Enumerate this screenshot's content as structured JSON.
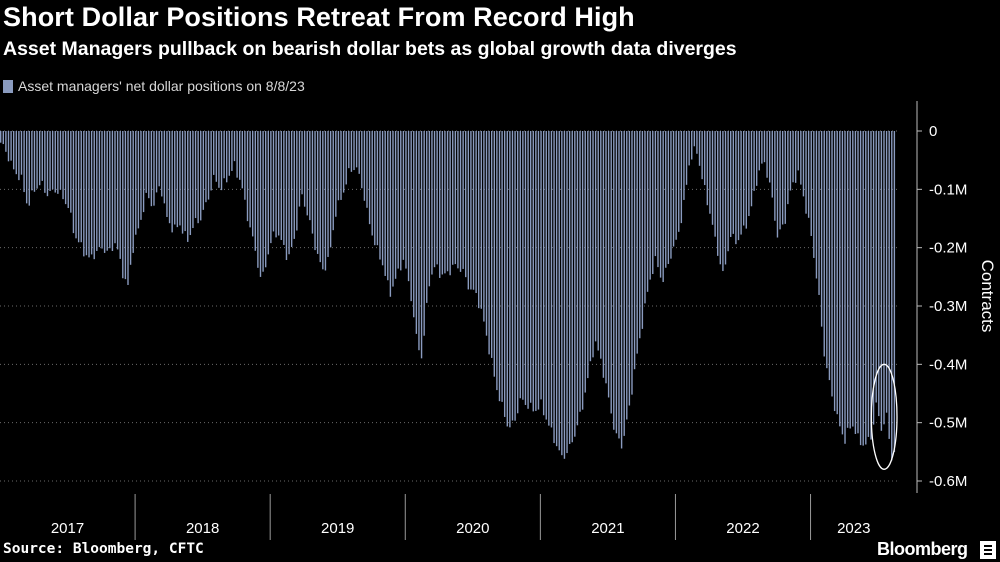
{
  "header": {
    "title": "Short Dollar Positions Retreat From Record High",
    "subtitle": "Asset Managers pullback on bearish dollar bets as global growth data diverges"
  },
  "footer": {
    "source": "Source: Bloomberg, CFTC",
    "brand": "Bloomberg"
  },
  "colors": {
    "background": "#000000",
    "bar": "#8a9bbf",
    "axis_text": "#ffffff",
    "annotation": "#ffffff"
  },
  "chart_data": {
    "type": "bar",
    "title": "Short Dollar Positions Retreat From Record High",
    "subtitle": "Asset Managers pullback on bearish dollar bets as global growth data diverges",
    "legend": [
      "Asset managers' net dollar positions on 8/8/23"
    ],
    "legend_position": "top-left",
    "ylabel": "Contracts",
    "ylim": [
      -0.6,
      0
    ],
    "y_unit": "million contracts",
    "yticks": [
      0,
      -0.1,
      -0.2,
      -0.3,
      -0.4,
      -0.5,
      -0.6
    ],
    "ytick_labels": [
      "0",
      "-0.1M",
      "-0.2M",
      "-0.3M",
      "-0.4M",
      "-0.5M",
      "-0.6M"
    ],
    "y_axis_position": "right",
    "grid": "horizontal dotted",
    "frequency": "weekly",
    "xlim": [
      2017.0,
      2023.64
    ],
    "x_labels": [
      "2017",
      "2018",
      "2019",
      "2020",
      "2021",
      "2022",
      "2023"
    ],
    "year_boundaries": [
      2018,
      2019,
      2020,
      2021,
      2022,
      2023
    ],
    "anchors": [
      [
        2017.0,
        -0.02
      ],
      [
        2017.05,
        -0.04
      ],
      [
        2017.1,
        -0.07
      ],
      [
        2017.15,
        -0.08
      ],
      [
        2017.2,
        -0.13
      ],
      [
        2017.25,
        -0.1
      ],
      [
        2017.3,
        -0.09
      ],
      [
        2017.35,
        -0.11
      ],
      [
        2017.4,
        -0.1
      ],
      [
        2017.45,
        -0.11
      ],
      [
        2017.5,
        -0.13
      ],
      [
        2017.55,
        -0.18
      ],
      [
        2017.6,
        -0.2
      ],
      [
        2017.65,
        -0.22
      ],
      [
        2017.7,
        -0.21
      ],
      [
        2017.75,
        -0.2
      ],
      [
        2017.8,
        -0.21
      ],
      [
        2017.85,
        -0.19
      ],
      [
        2017.9,
        -0.24
      ],
      [
        2017.94,
        -0.27
      ],
      [
        2017.98,
        -0.2
      ],
      [
        2018.03,
        -0.16
      ],
      [
        2018.08,
        -0.11
      ],
      [
        2018.13,
        -0.13
      ],
      [
        2018.18,
        -0.09
      ],
      [
        2018.23,
        -0.15
      ],
      [
        2018.28,
        -0.17
      ],
      [
        2018.33,
        -0.16
      ],
      [
        2018.38,
        -0.19
      ],
      [
        2018.43,
        -0.16
      ],
      [
        2018.48,
        -0.15
      ],
      [
        2018.53,
        -0.12
      ],
      [
        2018.58,
        -0.08
      ],
      [
        2018.63,
        -0.1
      ],
      [
        2018.68,
        -0.08
      ],
      [
        2018.73,
        -0.06
      ],
      [
        2018.78,
        -0.09
      ],
      [
        2018.83,
        -0.15
      ],
      [
        2018.88,
        -0.2
      ],
      [
        2018.93,
        -0.26
      ],
      [
        2018.98,
        -0.21
      ],
      [
        2019.03,
        -0.17
      ],
      [
        2019.08,
        -0.19
      ],
      [
        2019.13,
        -0.22
      ],
      [
        2019.18,
        -0.18
      ],
      [
        2019.23,
        -0.11
      ],
      [
        2019.28,
        -0.15
      ],
      [
        2019.33,
        -0.2
      ],
      [
        2019.38,
        -0.24
      ],
      [
        2019.43,
        -0.22
      ],
      [
        2019.48,
        -0.14
      ],
      [
        2019.53,
        -0.11
      ],
      [
        2019.58,
        -0.07
      ],
      [
        2019.63,
        -0.06
      ],
      [
        2019.68,
        -0.1
      ],
      [
        2019.73,
        -0.16
      ],
      [
        2019.78,
        -0.2
      ],
      [
        2019.83,
        -0.23
      ],
      [
        2019.88,
        -0.28
      ],
      [
        2019.93,
        -0.25
      ],
      [
        2019.98,
        -0.22
      ],
      [
        2020.03,
        -0.27
      ],
      [
        2020.08,
        -0.36
      ],
      [
        2020.12,
        -0.39
      ],
      [
        2020.17,
        -0.26
      ],
      [
        2020.22,
        -0.23
      ],
      [
        2020.27,
        -0.25
      ],
      [
        2020.32,
        -0.24
      ],
      [
        2020.37,
        -0.23
      ],
      [
        2020.42,
        -0.24
      ],
      [
        2020.47,
        -0.27
      ],
      [
        2020.52,
        -0.28
      ],
      [
        2020.57,
        -0.32
      ],
      [
        2020.62,
        -0.38
      ],
      [
        2020.67,
        -0.44
      ],
      [
        2020.72,
        -0.48
      ],
      [
        2020.76,
        -0.51
      ],
      [
        2020.8,
        -0.5
      ],
      [
        2020.85,
        -0.46
      ],
      [
        2020.9,
        -0.47
      ],
      [
        2020.95,
        -0.48
      ],
      [
        2021.0,
        -0.47
      ],
      [
        2021.05,
        -0.5
      ],
      [
        2021.1,
        -0.53
      ],
      [
        2021.15,
        -0.56
      ],
      [
        2021.2,
        -0.55
      ],
      [
        2021.25,
        -0.52
      ],
      [
        2021.3,
        -0.48
      ],
      [
        2021.35,
        -0.42
      ],
      [
        2021.4,
        -0.36
      ],
      [
        2021.45,
        -0.4
      ],
      [
        2021.5,
        -0.46
      ],
      [
        2021.55,
        -0.52
      ],
      [
        2021.6,
        -0.54
      ],
      [
        2021.65,
        -0.48
      ],
      [
        2021.7,
        -0.4
      ],
      [
        2021.75,
        -0.33
      ],
      [
        2021.8,
        -0.26
      ],
      [
        2021.85,
        -0.22
      ],
      [
        2021.9,
        -0.26
      ],
      [
        2021.95,
        -0.22
      ],
      [
        2022.0,
        -0.19
      ],
      [
        2022.05,
        -0.14
      ],
      [
        2022.1,
        -0.05
      ],
      [
        2022.15,
        -0.03
      ],
      [
        2022.2,
        -0.09
      ],
      [
        2022.25,
        -0.14
      ],
      [
        2022.3,
        -0.2
      ],
      [
        2022.35,
        -0.25
      ],
      [
        2022.4,
        -0.18
      ],
      [
        2022.45,
        -0.19
      ],
      [
        2022.5,
        -0.17
      ],
      [
        2022.55,
        -0.14
      ],
      [
        2022.6,
        -0.08
      ],
      [
        2022.65,
        -0.05
      ],
      [
        2022.7,
        -0.1
      ],
      [
        2022.75,
        -0.18
      ],
      [
        2022.8,
        -0.16
      ],
      [
        2022.85,
        -0.1
      ],
      [
        2022.9,
        -0.07
      ],
      [
        2022.95,
        -0.12
      ],
      [
        2023.0,
        -0.18
      ],
      [
        2023.05,
        -0.27
      ],
      [
        2023.1,
        -0.39
      ],
      [
        2023.15,
        -0.45
      ],
      [
        2023.2,
        -0.5
      ],
      [
        2023.25,
        -0.53
      ],
      [
        2023.3,
        -0.5
      ],
      [
        2023.35,
        -0.53
      ],
      [
        2023.4,
        -0.54
      ],
      [
        2023.45,
        -0.52
      ],
      [
        2023.48,
        -0.47
      ],
      [
        2023.52,
        -0.51
      ],
      [
        2023.56,
        -0.49
      ],
      [
        2023.6,
        -0.57
      ],
      [
        2023.63,
        -0.53
      ]
    ],
    "annotations": [
      {
        "type": "ellipse",
        "label": "record-high-short-circle",
        "x_range": [
          2023.45,
          2023.64
        ],
        "y_range": [
          -0.4,
          -0.58
        ]
      }
    ]
  }
}
